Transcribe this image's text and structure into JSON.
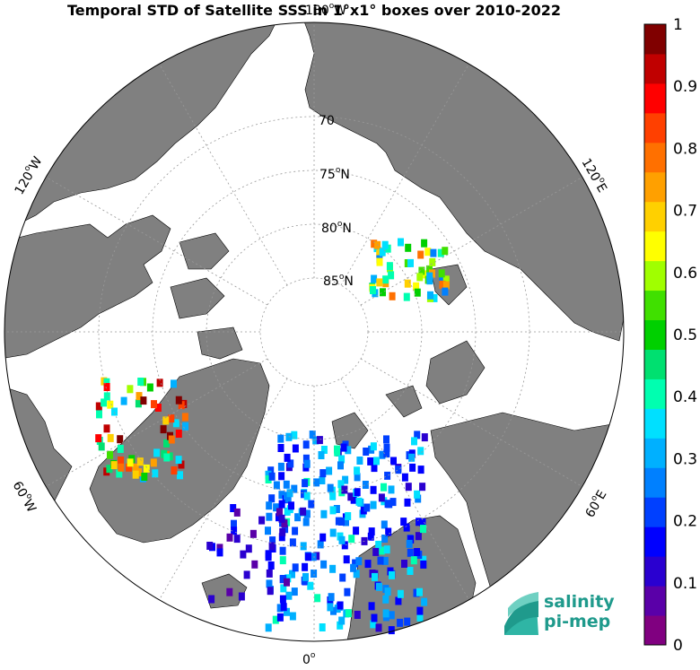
{
  "title": "Temporal STD of Satellite SSS in 1°x1° boxes over 2010-2022",
  "colors": {
    "land": "#808080",
    "ocean_data_free": "#ffffff",
    "grid": "#999999",
    "logo": "#1f9a8c"
  },
  "map": {
    "projection": "north-polar-stereographic",
    "latitude_labels": [
      {
        "deg": "70",
        "suffix": ""
      },
      {
        "deg": "75",
        "suffix": "N"
      },
      {
        "deg": "80",
        "suffix": "N"
      },
      {
        "deg": "85",
        "suffix": "N"
      }
    ],
    "longitude_labels": {
      "top": {
        "deg": "180",
        "suffix": "W"
      },
      "bottom": {
        "deg": "0",
        "suffix": ""
      },
      "upper_left": {
        "deg": "120",
        "suffix": "W"
      },
      "upper_right": {
        "deg": "120",
        "suffix": "E"
      },
      "lower_left": {
        "deg": "60",
        "suffix": "W"
      },
      "lower_right": {
        "deg": "60",
        "suffix": "E"
      }
    }
  },
  "colorbar": {
    "min": 0,
    "max": 1,
    "tick_labels": [
      "1",
      "0.9",
      "0.8",
      "0.7",
      "0.6",
      "0.5",
      "0.4",
      "0.3",
      "0.2",
      "0.1",
      "0"
    ],
    "colors": [
      "#800080",
      "#5a00a8",
      "#2a00d0",
      "#0000ff",
      "#0040ff",
      "#0080ff",
      "#00b0ff",
      "#00e0ff",
      "#00ffb0",
      "#00e070",
      "#00d000",
      "#40e000",
      "#a0ff00",
      "#ffff00",
      "#ffd000",
      "#ffa000",
      "#ff7000",
      "#ff4000",
      "#ff0000",
      "#c00000",
      "#800000"
    ]
  },
  "logo": {
    "line1": "salinity",
    "line2": "pi-mep"
  }
}
